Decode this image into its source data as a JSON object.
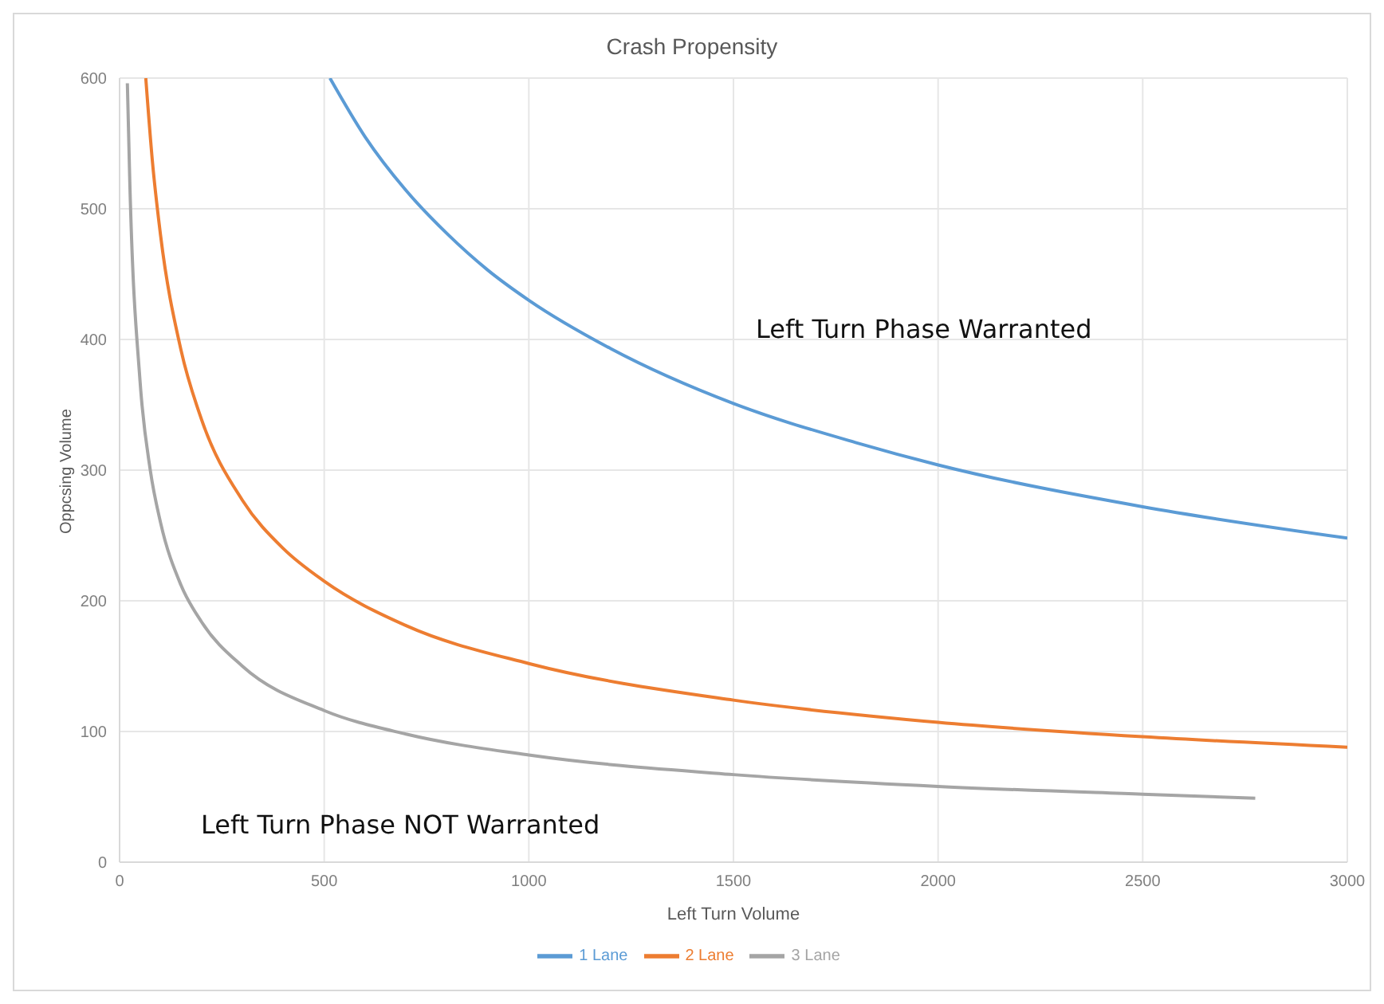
{
  "chart_data": {
    "type": "line",
    "title": "Crash Propensity",
    "xlabel": "Left Turn Volume",
    "ylabel": "Oppcsing Volume",
    "xlim": [
      0,
      3000
    ],
    "xticks": [
      0,
      500,
      1000,
      1500,
      2000,
      2500,
      3000
    ],
    "ylim": [
      0,
      600
    ],
    "yticks": [
      0,
      100,
      200,
      300,
      400,
      500,
      600
    ],
    "grid": true,
    "legend": "bottom",
    "marker": "none",
    "line_style": "solid",
    "annotations": [
      "Left Turn Phase Warranted",
      "Left Turn Phase NOT Warranted"
    ],
    "series": [
      {
        "name": "1 Lane",
        "color": "#5b9bd5",
        "x": [
          514,
          600,
          700,
          800,
          900,
          1000,
          1200,
          1500,
          1800,
          2000,
          2500,
          3000
        ],
        "values": [
          600,
          555,
          514,
          481,
          453,
          430,
          393,
          351,
          321,
          304,
          272,
          248
        ]
      },
      {
        "name": "2 Lane",
        "color": "#ed7d31",
        "x": [
          64,
          80,
          100,
          150,
          200,
          300,
          400,
          500,
          700,
          1000,
          1500,
          2000,
          2500,
          3000
        ],
        "values": [
          600,
          537,
          480,
          392,
          339,
          277,
          240,
          215,
          181,
          152,
          124,
          107,
          96,
          88
        ]
      },
      {
        "name": "3 Lane",
        "color": "#a5a5a5",
        "x": [
          19,
          25,
          50,
          75,
          100,
          150,
          200,
          300,
          500,
          700,
          1000,
          1500,
          2000,
          2500,
          2775
        ],
        "values": [
          596,
          520,
          368,
          300,
          260,
          212,
          184,
          150,
          116,
          98,
          82,
          67,
          58,
          52,
          49
        ]
      }
    ]
  }
}
